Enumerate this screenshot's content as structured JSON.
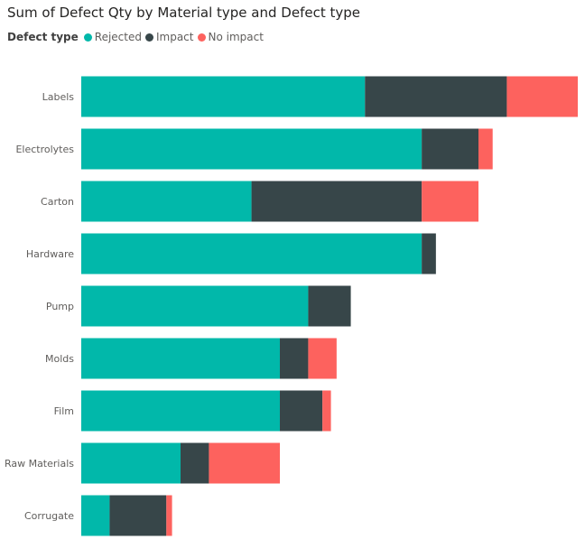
{
  "chart_data": {
    "type": "bar",
    "orientation": "horizontal",
    "stacked": true,
    "title": "Sum of Defect Qty by Material type and Defect type",
    "legend_title": "Defect type",
    "legend_position": "top-left",
    "categories": [
      "Labels",
      "Electrolytes",
      "Carton",
      "Hardware",
      "Pump",
      "Molds",
      "Film",
      "Raw Materials",
      "Corrugate"
    ],
    "series": [
      {
        "name": "Rejected",
        "color": "#01b8aa",
        "values": [
          10,
          12,
          6,
          12,
          8,
          7,
          7,
          3.5,
          1
        ]
      },
      {
        "name": "Impact",
        "color": "#374649",
        "values": [
          5,
          2,
          6,
          0.5,
          1.5,
          1,
          1.5,
          1,
          2
        ]
      },
      {
        "name": "No impact",
        "color": "#fd625e",
        "values": [
          2.5,
          0.5,
          2,
          0,
          0,
          1,
          0.3,
          2.5,
          0.2
        ]
      }
    ],
    "xlim": [
      0,
      17.5
    ],
    "grid": false,
    "x_axis_visible": false
  }
}
